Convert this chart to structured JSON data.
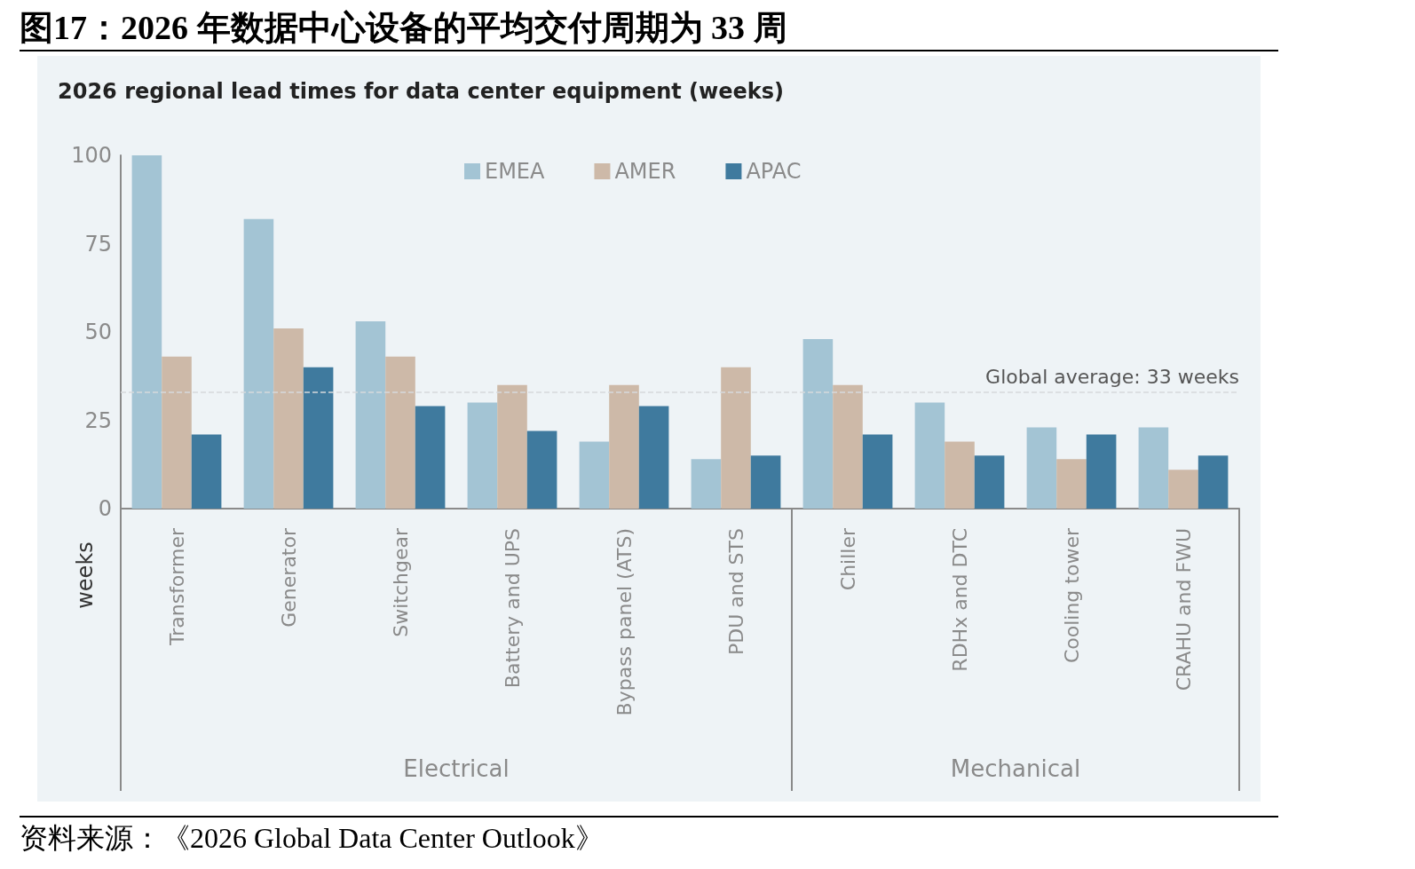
{
  "chart_data": {
    "type": "bar",
    "title": "图17：2026 年数据中心设备的平均交付周期为 33 周",
    "subtitle": "2026 regional lead times for data center equipment (weeks)",
    "ylabel": "weeks",
    "categories": [
      "Transformer",
      "Generator",
      "Switchgear",
      "Battery and UPS",
      "Bypass panel (ATS)",
      "PDU and STS",
      "Chiller",
      "RDHx and DTC",
      "Cooling tower",
      "CRAHU and FWU"
    ],
    "series": [
      {
        "name": "EMEA",
        "color": "#a3c4d4",
        "values": [
          100,
          82,
          53,
          30,
          19,
          14,
          48,
          30,
          23,
          23
        ]
      },
      {
        "name": "AMER",
        "color": "#cdb9a8",
        "values": [
          43,
          51,
          43,
          35,
          35,
          40,
          35,
          19,
          14,
          11
        ]
      },
      {
        "name": "APAC",
        "color": "#3f7a9e",
        "values": [
          21,
          40,
          29,
          22,
          29,
          15,
          21,
          15,
          21,
          15
        ]
      }
    ],
    "ylim": [
      0,
      100
    ],
    "yticks": [
      0,
      25,
      50,
      75,
      100
    ],
    "grid": false,
    "legend": "top",
    "ref_lines": [
      {
        "axis": "y",
        "value": 33,
        "label": "Global average: 33 weeks",
        "color": "#d6d9dc",
        "line_style": "dashed"
      }
    ],
    "annotations": [
      "Electrical",
      "Mechanical",
      "资料来源：《2026 Global Data Center Outlook》"
    ]
  }
}
